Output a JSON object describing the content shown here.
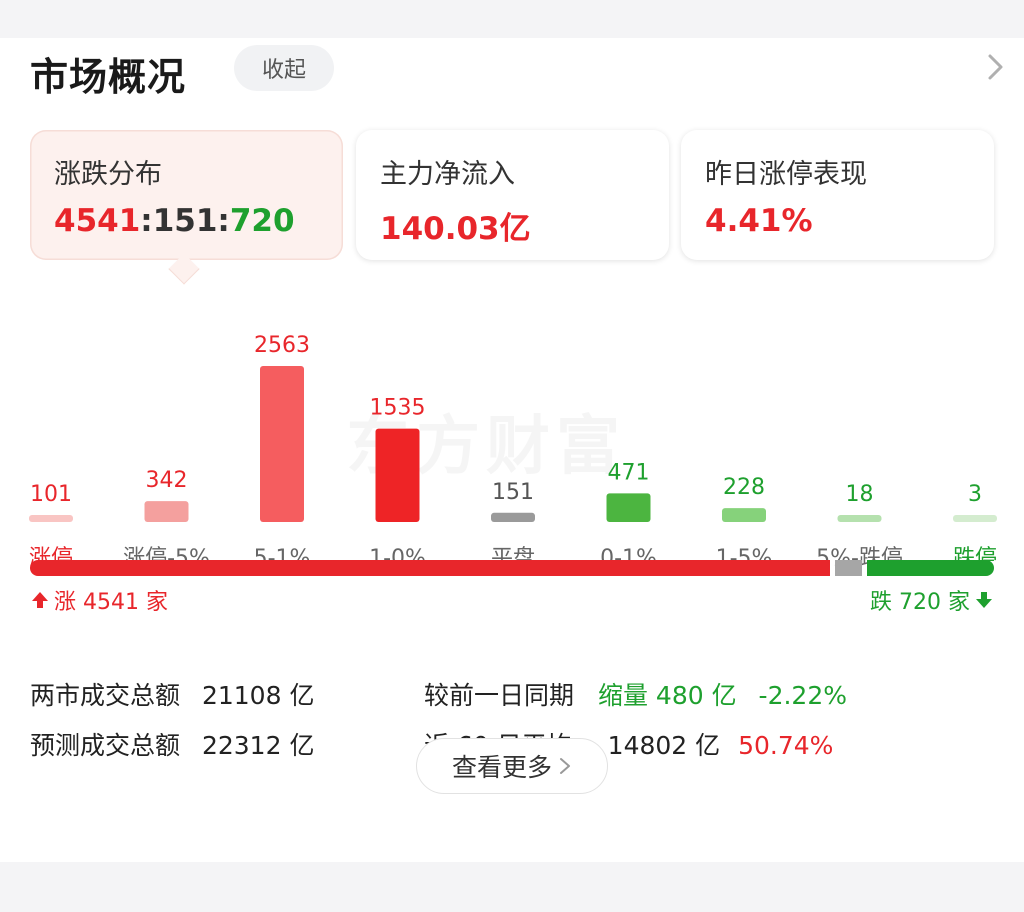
{
  "header": {
    "title": "市场概况",
    "collapse_label": "收起"
  },
  "stats": [
    {
      "label": "涨跌分布",
      "up": "4541",
      "flat": "151",
      "down": "720",
      "sep": ":"
    },
    {
      "label": "主力净流入",
      "value": "140.03亿"
    },
    {
      "label": "昨日涨停表现",
      "value": "4.41%"
    }
  ],
  "watermark": "东方财富",
  "chart_data": {
    "type": "bar",
    "categories": [
      "涨停",
      "涨停-5%",
      "5-1%",
      "1-0%",
      "平盘",
      "0-1%",
      "1-5%",
      "5%-跌停",
      "跌停"
    ],
    "values": [
      101,
      342,
      2563,
      1535,
      151,
      471,
      228,
      18,
      3
    ],
    "colors": [
      "#f9c5c3",
      "#f4a09e",
      "#f55d5f",
      "#ee2426",
      "#9a9a9a",
      "#4cb540",
      "#86d27b",
      "#b5e1ae",
      "#d4eccf"
    ],
    "value_colors": [
      "#e8262b",
      "#e8262b",
      "#e8262b",
      "#e8262b",
      "#555555",
      "#1ea02e",
      "#1ea02e",
      "#1ea02e",
      "#1ea02e"
    ],
    "label_colors": [
      "#e8262b",
      "#666666",
      "#666666",
      "#666666",
      "#666666",
      "#666666",
      "#666666",
      "#666666",
      "#1ea02e"
    ]
  },
  "breadth": {
    "up_count": 4541,
    "flat_count": 151,
    "down_count": 720,
    "up_label": "涨 4541 家",
    "down_label": "跌 720 家"
  },
  "turnover": {
    "total_label": "两市成交总额",
    "total_value": "21108 亿",
    "compare_label": "较前一日同期",
    "compare_change": "缩量 480 亿",
    "compare_pct": "-2.22%",
    "forecast_label": "预测成交总额",
    "forecast_value": "22312 亿",
    "avg_label": "近 60 日平均",
    "avg_value": "14802 亿",
    "avg_pct": "50.74%"
  },
  "more_label": "查看更多",
  "colors": {
    "red": "#e8262b",
    "green": "#1ea02e",
    "gray": "#9a9a9a"
  }
}
